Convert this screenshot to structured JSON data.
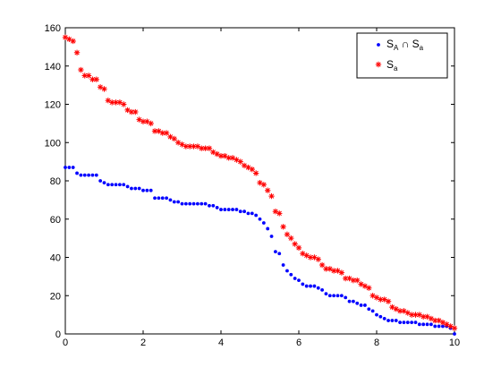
{
  "chart_data": {
    "type": "scatter",
    "xlim": [
      0,
      10
    ],
    "ylim": [
      0,
      160
    ],
    "xticks": [
      0,
      2,
      4,
      6,
      8,
      10
    ],
    "yticks": [
      0,
      20,
      40,
      60,
      80,
      100,
      120,
      140,
      160
    ],
    "grid": false,
    "legend_position": "top-right",
    "series": [
      {
        "name_main": "S",
        "name_sub1": "A",
        "name_mid": " ∩ S",
        "name_sub2": "a",
        "color": "#0000ff",
        "marker": "dot",
        "x": [
          0,
          0.1,
          0.2,
          0.3,
          0.4,
          0.5,
          0.6,
          0.7,
          0.8,
          0.9,
          1.0,
          1.1,
          1.2,
          1.3,
          1.4,
          1.5,
          1.6,
          1.7,
          1.8,
          1.9,
          2.0,
          2.1,
          2.2,
          2.3,
          2.4,
          2.5,
          2.6,
          2.7,
          2.8,
          2.9,
          3.0,
          3.1,
          3.2,
          3.3,
          3.4,
          3.5,
          3.6,
          3.7,
          3.8,
          3.9,
          4.0,
          4.1,
          4.2,
          4.3,
          4.4,
          4.5,
          4.6,
          4.7,
          4.8,
          4.9,
          5.0,
          5.1,
          5.2,
          5.3,
          5.4,
          5.5,
          5.6,
          5.7,
          5.8,
          5.9,
          6.0,
          6.1,
          6.2,
          6.3,
          6.4,
          6.5,
          6.6,
          6.7,
          6.8,
          6.9,
          7.0,
          7.1,
          7.2,
          7.3,
          7.4,
          7.5,
          7.6,
          7.7,
          7.8,
          7.9,
          8.0,
          8.1,
          8.2,
          8.3,
          8.4,
          8.5,
          8.6,
          8.7,
          8.8,
          8.9,
          9.0,
          9.1,
          9.2,
          9.3,
          9.4,
          9.5,
          9.6,
          9.7,
          9.8,
          9.9,
          10.0
        ],
        "y": [
          87,
          87,
          87,
          84,
          83,
          83,
          83,
          83,
          83,
          80,
          79,
          78,
          78,
          78,
          78,
          78,
          77,
          76,
          76,
          76,
          75,
          75,
          75,
          71,
          71,
          71,
          71,
          70,
          69,
          69,
          68,
          68,
          68,
          68,
          68,
          68,
          68,
          67,
          67,
          66,
          65,
          65,
          65,
          65,
          65,
          64,
          64,
          63,
          63,
          62,
          60,
          58,
          55,
          51,
          43,
          42,
          36,
          33,
          31,
          29,
          28,
          26,
          25,
          25,
          25,
          24,
          23,
          21,
          20,
          20,
          20,
          20,
          19,
          17,
          17,
          16,
          15,
          15,
          13,
          12,
          10,
          9,
          8,
          7,
          7,
          7,
          6,
          6,
          6,
          6,
          6,
          5,
          5,
          5,
          5,
          4,
          4,
          4,
          4,
          3,
          0
        ]
      },
      {
        "name_main": "S",
        "name_sub1": "a",
        "color": "#ff0000",
        "marker": "star",
        "x": [
          0,
          0.1,
          0.2,
          0.3,
          0.4,
          0.5,
          0.6,
          0.7,
          0.8,
          0.9,
          1.0,
          1.1,
          1.2,
          1.3,
          1.4,
          1.5,
          1.6,
          1.7,
          1.8,
          1.9,
          2.0,
          2.1,
          2.2,
          2.3,
          2.4,
          2.5,
          2.6,
          2.7,
          2.8,
          2.9,
          3.0,
          3.1,
          3.2,
          3.3,
          3.4,
          3.5,
          3.6,
          3.7,
          3.8,
          3.9,
          4.0,
          4.1,
          4.2,
          4.3,
          4.4,
          4.5,
          4.6,
          4.7,
          4.8,
          4.9,
          5.0,
          5.1,
          5.2,
          5.3,
          5.4,
          5.5,
          5.6,
          5.7,
          5.8,
          5.9,
          6.0,
          6.1,
          6.2,
          6.3,
          6.4,
          6.5,
          6.6,
          6.7,
          6.8,
          6.9,
          7.0,
          7.1,
          7.2,
          7.3,
          7.4,
          7.5,
          7.6,
          7.7,
          7.8,
          7.9,
          8.0,
          8.1,
          8.2,
          8.3,
          8.4,
          8.5,
          8.6,
          8.7,
          8.8,
          8.9,
          9.0,
          9.1,
          9.2,
          9.3,
          9.4,
          9.5,
          9.6,
          9.7,
          9.8,
          9.9,
          10.0
        ],
        "y": [
          155,
          154,
          153,
          147,
          138,
          135,
          135,
          133,
          133,
          129,
          128,
          122,
          121,
          121,
          121,
          120,
          117,
          116,
          116,
          112,
          111,
          111,
          110,
          106,
          106,
          105,
          105,
          103,
          102,
          100,
          99,
          98,
          98,
          98,
          98,
          97,
          97,
          97,
          95,
          94,
          93,
          93,
          92,
          92,
          91,
          90,
          88,
          87,
          86,
          84,
          79,
          78,
          75,
          72,
          64,
          63,
          56,
          52,
          50,
          47,
          45,
          42,
          41,
          40,
          40,
          39,
          36,
          34,
          34,
          33,
          33,
          32,
          29,
          29,
          28,
          28,
          26,
          25,
          24,
          20,
          19,
          18,
          18,
          17,
          14,
          13,
          12,
          12,
          11,
          10,
          10,
          10,
          9,
          9,
          8,
          7,
          7,
          6,
          5,
          4,
          3
        ]
      }
    ]
  }
}
